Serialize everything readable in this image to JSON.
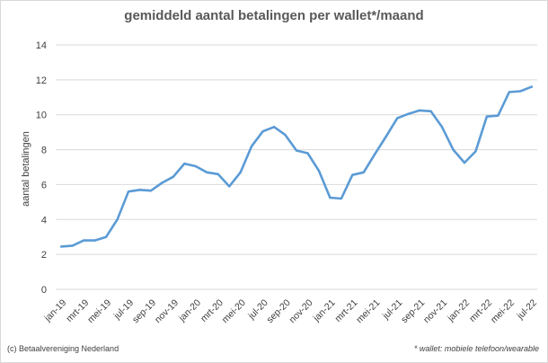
{
  "chart_data": {
    "type": "line",
    "title": "gemiddeld aantal betalingen per wallet*/maand",
    "ylabel": "aantal betalingen",
    "xlabel": "",
    "ylim": [
      0,
      14
    ],
    "yticks": [
      0,
      2,
      4,
      6,
      8,
      10,
      12,
      14
    ],
    "grid": "horizontal",
    "legend": "none",
    "line_color": "#5b9bd5",
    "x": [
      "jan-19",
      "feb-19",
      "mrt-19",
      "apr-19",
      "mei-19",
      "jun-19",
      "jul-19",
      "aug-19",
      "sep-19",
      "okt-19",
      "nov-19",
      "dec-19",
      "jan-20",
      "feb-20",
      "mrt-20",
      "apr-20",
      "mei-20",
      "jun-20",
      "jul-20",
      "aug-20",
      "sep-20",
      "okt-20",
      "nov-20",
      "dec-20",
      "jan-21",
      "feb-21",
      "mrt-21",
      "apr-21",
      "mei-21",
      "jun-21",
      "jul-21",
      "aug-21",
      "sep-21",
      "okt-21",
      "nov-21",
      "dec-21",
      "jan-22",
      "feb-22",
      "mrt-22",
      "apr-22",
      "mei-22",
      "jun-22",
      "jul-22"
    ],
    "tick_labels": [
      "jan-19",
      "mrt-19",
      "mei-19",
      "jul-19",
      "sep-19",
      "nov-19",
      "jan-20",
      "mrt-20",
      "mei-20",
      "jul-20",
      "sep-20",
      "nov-20",
      "jan-21",
      "mrt-21",
      "mei-21",
      "jul-21",
      "sep-21",
      "nov-21",
      "jan-22",
      "mrt-22",
      "mei-22",
      "jul-22"
    ],
    "series": [
      {
        "name": "",
        "values": [
          2.45,
          2.5,
          2.8,
          2.8,
          3.0,
          4.0,
          5.6,
          5.7,
          5.65,
          6.1,
          6.45,
          7.2,
          7.05,
          6.7,
          6.6,
          5.9,
          6.7,
          8.2,
          9.05,
          9.3,
          8.85,
          7.95,
          7.8,
          6.8,
          5.25,
          5.2,
          6.55,
          6.7,
          7.75,
          8.75,
          9.8,
          10.05,
          10.25,
          10.2,
          9.3,
          8.0,
          7.25,
          7.9,
          9.9,
          9.95,
          11.3,
          11.35,
          11.6
        ]
      }
    ]
  },
  "footer": {
    "copyright": "(c) Betaalvereniging Nederland",
    "footnote": "* wallet: mobiele telefoon/wearable"
  }
}
